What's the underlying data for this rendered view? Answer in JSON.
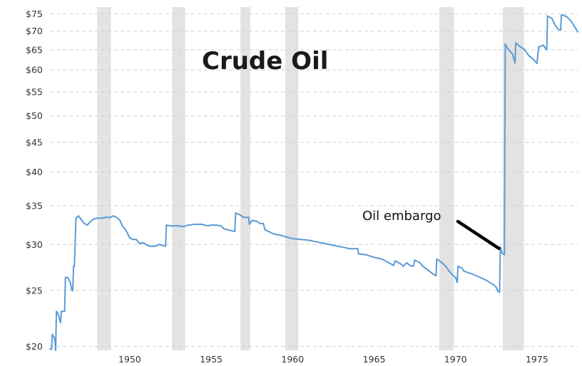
{
  "chart_data": {
    "type": "line",
    "title": "Crude Oil",
    "xlabel": "",
    "ylabel": "",
    "y_scale": "log",
    "xlim": [
      1945.1,
      1977.5
    ],
    "ylim": [
      19.7,
      77
    ],
    "grid": "horizontal dashed",
    "legend": "none",
    "x_ticks": [
      1950,
      1955,
      1960,
      1965,
      1970,
      1975
    ],
    "x_tick_labels": [
      "1950",
      "1955",
      "1960",
      "1965",
      "1970",
      "1975"
    ],
    "y_ticks": [
      20,
      25,
      30,
      35,
      40,
      45,
      50,
      55,
      60,
      65,
      70,
      75
    ],
    "y_tick_labels": [
      "$20",
      "$25",
      "$30",
      "$35",
      "$40",
      "$45",
      "$50",
      "$55",
      "$60",
      "$65",
      "$70",
      "$75"
    ],
    "recessions": [
      {
        "start": 1948.0,
        "end": 1948.85
      },
      {
        "start": 1952.6,
        "end": 1953.4
      },
      {
        "start": 1956.8,
        "end": 1957.4
      },
      {
        "start": 1959.55,
        "end": 1960.35
      },
      {
        "start": 1969.0,
        "end": 1969.9
      },
      {
        "start": 1972.9,
        "end": 1974.2
      }
    ],
    "series": [
      {
        "color": "#5b9bd5",
        "points": [
          [
            1945.1,
            19.8
          ],
          [
            1945.2,
            19.8
          ],
          [
            1945.25,
            21.0
          ],
          [
            1945.4,
            20.6
          ],
          [
            1945.45,
            19.7
          ],
          [
            1945.5,
            23.0
          ],
          [
            1945.6,
            22.8
          ],
          [
            1945.75,
            22.0
          ],
          [
            1945.8,
            23.0
          ],
          [
            1945.95,
            23.0
          ],
          [
            1946.0,
            23.0
          ],
          [
            1946.05,
            26.3
          ],
          [
            1946.2,
            26.3
          ],
          [
            1946.35,
            25.8
          ],
          [
            1946.45,
            25.0
          ],
          [
            1946.5,
            25.0
          ],
          [
            1946.55,
            27.5
          ],
          [
            1946.6,
            27.5
          ],
          [
            1946.7,
            33.3
          ],
          [
            1946.85,
            33.6
          ],
          [
            1947.0,
            33.2
          ],
          [
            1947.2,
            32.6
          ],
          [
            1947.4,
            32.4
          ],
          [
            1947.55,
            32.8
          ],
          [
            1947.8,
            33.2
          ],
          [
            1948.0,
            33.3
          ],
          [
            1948.3,
            33.3
          ],
          [
            1948.5,
            33.4
          ],
          [
            1948.8,
            33.4
          ],
          [
            1949.0,
            33.6
          ],
          [
            1949.2,
            33.4
          ],
          [
            1949.4,
            33.0
          ],
          [
            1949.55,
            32.3
          ],
          [
            1949.75,
            31.8
          ],
          [
            1950.0,
            30.8
          ],
          [
            1950.2,
            30.6
          ],
          [
            1950.4,
            30.6
          ],
          [
            1950.6,
            30.1
          ],
          [
            1950.8,
            30.2
          ],
          [
            1951.0,
            30.0
          ],
          [
            1951.2,
            29.8
          ],
          [
            1951.4,
            29.8
          ],
          [
            1951.6,
            29.8
          ],
          [
            1951.8,
            30.0
          ],
          [
            1952.0,
            29.9
          ],
          [
            1952.2,
            29.8
          ],
          [
            1952.25,
            32.4
          ],
          [
            1952.5,
            32.3
          ],
          [
            1952.8,
            32.3
          ],
          [
            1953.0,
            32.3
          ],
          [
            1953.3,
            32.2
          ],
          [
            1953.6,
            32.4
          ],
          [
            1954.0,
            32.5
          ],
          [
            1954.4,
            32.5
          ],
          [
            1954.8,
            32.3
          ],
          [
            1955.0,
            32.4
          ],
          [
            1955.3,
            32.4
          ],
          [
            1955.6,
            32.3
          ],
          [
            1955.8,
            31.9
          ],
          [
            1956.0,
            31.8
          ],
          [
            1956.2,
            31.7
          ],
          [
            1956.45,
            31.6
          ],
          [
            1956.5,
            34.0
          ],
          [
            1956.8,
            33.7
          ],
          [
            1957.0,
            33.4
          ],
          [
            1957.3,
            33.4
          ],
          [
            1957.35,
            32.5
          ],
          [
            1957.5,
            33.0
          ],
          [
            1957.8,
            32.9
          ],
          [
            1958.0,
            32.6
          ],
          [
            1958.2,
            32.6
          ],
          [
            1958.3,
            31.8
          ],
          [
            1958.5,
            31.6
          ],
          [
            1958.8,
            31.3
          ],
          [
            1959.0,
            31.2
          ],
          [
            1959.3,
            31.1
          ],
          [
            1959.6,
            30.9
          ],
          [
            1960.0,
            30.7
          ],
          [
            1960.5,
            30.6
          ],
          [
            1961.0,
            30.5
          ],
          [
            1961.5,
            30.3
          ],
          [
            1962.0,
            30.1
          ],
          [
            1962.5,
            29.9
          ],
          [
            1963.0,
            29.7
          ],
          [
            1963.5,
            29.5
          ],
          [
            1964.0,
            29.5
          ],
          [
            1964.05,
            28.9
          ],
          [
            1964.5,
            28.8
          ],
          [
            1965.0,
            28.5
          ],
          [
            1965.5,
            28.3
          ],
          [
            1965.8,
            28.0
          ],
          [
            1966.0,
            27.8
          ],
          [
            1966.2,
            27.6
          ],
          [
            1966.3,
            28.1
          ],
          [
            1966.5,
            27.9
          ],
          [
            1966.7,
            27.7
          ],
          [
            1966.8,
            27.5
          ],
          [
            1967.0,
            27.9
          ],
          [
            1967.2,
            27.6
          ],
          [
            1967.4,
            27.5
          ],
          [
            1967.5,
            28.2
          ],
          [
            1967.8,
            27.9
          ],
          [
            1968.0,
            27.5
          ],
          [
            1968.3,
            27.1
          ],
          [
            1968.6,
            26.7
          ],
          [
            1968.8,
            26.5
          ],
          [
            1968.85,
            28.3
          ],
          [
            1969.1,
            28.0
          ],
          [
            1969.4,
            27.5
          ],
          [
            1969.6,
            27.0
          ],
          [
            1969.8,
            26.6
          ],
          [
            1970.0,
            26.3
          ],
          [
            1970.1,
            25.8
          ],
          [
            1970.15,
            27.5
          ],
          [
            1970.4,
            27.3
          ],
          [
            1970.5,
            27.0
          ],
          [
            1970.8,
            26.8
          ],
          [
            1971.0,
            26.7
          ],
          [
            1971.4,
            26.4
          ],
          [
            1971.8,
            26.1
          ],
          [
            1972.0,
            25.9
          ],
          [
            1972.3,
            25.6
          ],
          [
            1972.5,
            25.3
          ],
          [
            1972.6,
            24.9
          ],
          [
            1972.7,
            24.8
          ],
          [
            1972.75,
            29.7
          ],
          [
            1972.85,
            29.0
          ],
          [
            1973.0,
            28.8
          ],
          [
            1973.05,
            66.5
          ],
          [
            1973.2,
            65.3
          ],
          [
            1973.5,
            63.9
          ],
          [
            1973.65,
            61.7
          ],
          [
            1973.7,
            66.8
          ],
          [
            1973.9,
            66.0
          ],
          [
            1974.2,
            65.2
          ],
          [
            1974.5,
            63.5
          ],
          [
            1974.8,
            62.5
          ],
          [
            1974.9,
            62.0
          ],
          [
            1975.0,
            61.6
          ],
          [
            1975.1,
            65.7
          ],
          [
            1975.4,
            66.2
          ],
          [
            1975.5,
            65.5
          ],
          [
            1975.6,
            65.0
          ],
          [
            1975.65,
            74.3
          ],
          [
            1975.9,
            73.7
          ],
          [
            1976.1,
            71.8
          ],
          [
            1976.3,
            70.5
          ],
          [
            1976.45,
            70.3
          ],
          [
            1976.5,
            74.7
          ],
          [
            1976.8,
            74.2
          ],
          [
            1977.1,
            72.8
          ],
          [
            1977.35,
            70.9
          ],
          [
            1977.5,
            69.8
          ]
        ]
      }
    ],
    "annotation": {
      "text": "Oil embargo",
      "x": 1972.75,
      "y": 29.7
    }
  }
}
